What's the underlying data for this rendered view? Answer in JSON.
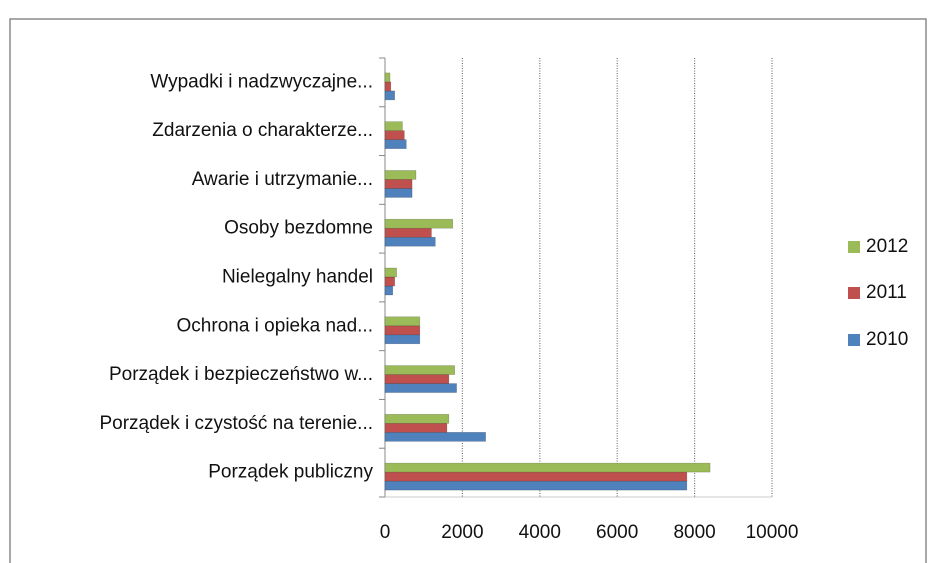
{
  "chart_data": {
    "type": "hbar",
    "categories": [
      "Porządek publiczny",
      "Porządek i czystość na terenie...",
      "Porządek i bezpieczeństwo w...",
      "Ochrona i opieka nad...",
      "Nielegalny handel",
      "Osoby bezdomne",
      "Awarie i utrzymanie...",
      "Zdarzenia o charakterze...",
      "Wypadki i nadzwyczajne..."
    ],
    "series": [
      {
        "name": "2010",
        "color": "#4f81bd",
        "values": [
          7800,
          2600,
          1850,
          900,
          200,
          1300,
          700,
          550,
          250
        ]
      },
      {
        "name": "2011",
        "color": "#c0504d",
        "values": [
          7800,
          1600,
          1650,
          900,
          250,
          1200,
          700,
          500,
          150
        ]
      },
      {
        "name": "2012",
        "color": "#9bbb59",
        "values": [
          8400,
          1650,
          1800,
          900,
          300,
          1750,
          800,
          450,
          130
        ]
      }
    ],
    "xlim": [
      0,
      10000
    ],
    "xticks": [
      0,
      2000,
      4000,
      6000,
      8000,
      10000
    ],
    "grid": true,
    "legend": "right"
  }
}
